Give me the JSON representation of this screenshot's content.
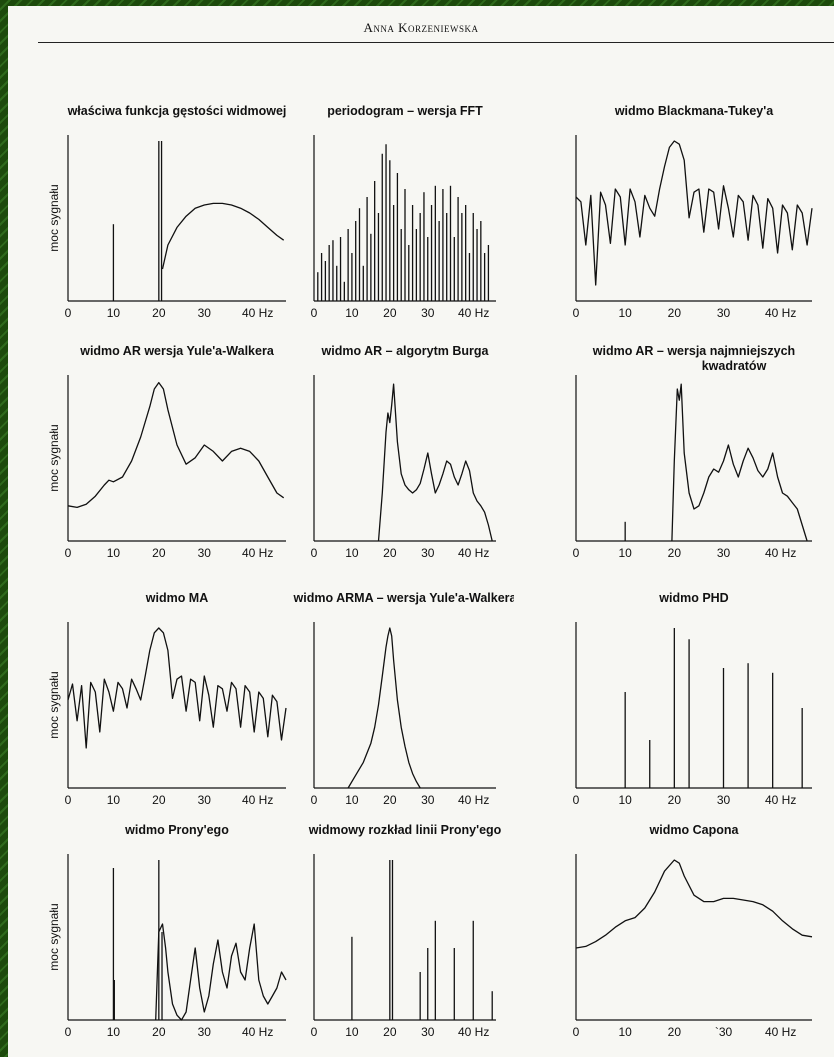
{
  "header": {
    "author": "Anna Korzeniewska"
  },
  "colors": {
    "frame": "#1f4d0e",
    "paper": "#f7f7f3",
    "ink": "#111111"
  },
  "chart_data": [
    {
      "id": "p1",
      "type": "line",
      "title": "właściwa funkcja gęstości widmowej",
      "ylabel": "moc sygnału",
      "x_ticks": [
        "0",
        "10",
        "20",
        "30",
        "40 Hz"
      ],
      "xlim": [
        0,
        48
      ],
      "ylim": [
        0,
        1
      ],
      "lines": [
        {
          "x": 10,
          "h": 0.48
        },
        {
          "x": 20,
          "h": 1.0
        },
        {
          "x": 20.6,
          "h": 1.0
        }
      ],
      "series": [
        {
          "x": [
            20.8,
            22,
            24,
            26,
            28,
            30,
            32,
            34,
            36,
            38,
            40,
            42,
            44,
            46,
            47.5
          ],
          "y": [
            0.2,
            0.35,
            0.46,
            0.53,
            0.58,
            0.6,
            0.61,
            0.61,
            0.6,
            0.58,
            0.55,
            0.51,
            0.46,
            0.41,
            0.38
          ]
        }
      ]
    },
    {
      "id": "p2",
      "type": "bar",
      "title": "periodogram – wersja FFT",
      "ylabel": "",
      "x_ticks": [
        "0",
        "10",
        "20",
        "30",
        "40 Hz"
      ],
      "xlim": [
        0,
        48
      ],
      "ylim": [
        0,
        1
      ],
      "lines": [
        {
          "x": 1,
          "h": 0.18
        },
        {
          "x": 2,
          "h": 0.3
        },
        {
          "x": 3,
          "h": 0.25
        },
        {
          "x": 4,
          "h": 0.35
        },
        {
          "x": 5,
          "h": 0.38
        },
        {
          "x": 6,
          "h": 0.22
        },
        {
          "x": 7,
          "h": 0.4
        },
        {
          "x": 8,
          "h": 0.12
        },
        {
          "x": 9,
          "h": 0.45
        },
        {
          "x": 10,
          "h": 0.3
        },
        {
          "x": 11,
          "h": 0.5
        },
        {
          "x": 12,
          "h": 0.58
        },
        {
          "x": 13,
          "h": 0.22
        },
        {
          "x": 14,
          "h": 0.65
        },
        {
          "x": 15,
          "h": 0.42
        },
        {
          "x": 16,
          "h": 0.75
        },
        {
          "x": 17,
          "h": 0.55
        },
        {
          "x": 18,
          "h": 0.92
        },
        {
          "x": 19,
          "h": 0.98
        },
        {
          "x": 20,
          "h": 0.88
        },
        {
          "x": 21,
          "h": 0.6
        },
        {
          "x": 22,
          "h": 0.8
        },
        {
          "x": 23,
          "h": 0.45
        },
        {
          "x": 24,
          "h": 0.7
        },
        {
          "x": 25,
          "h": 0.35
        },
        {
          "x": 26,
          "h": 0.6
        },
        {
          "x": 27,
          "h": 0.45
        },
        {
          "x": 28,
          "h": 0.55
        },
        {
          "x": 29,
          "h": 0.68
        },
        {
          "x": 30,
          "h": 0.4
        },
        {
          "x": 31,
          "h": 0.6
        },
        {
          "x": 32,
          "h": 0.72
        },
        {
          "x": 33,
          "h": 0.5
        },
        {
          "x": 34,
          "h": 0.7
        },
        {
          "x": 35,
          "h": 0.55
        },
        {
          "x": 36,
          "h": 0.72
        },
        {
          "x": 37,
          "h": 0.4
        },
        {
          "x": 38,
          "h": 0.65
        },
        {
          "x": 39,
          "h": 0.55
        },
        {
          "x": 40,
          "h": 0.6
        },
        {
          "x": 41,
          "h": 0.3
        },
        {
          "x": 42,
          "h": 0.55
        },
        {
          "x": 43,
          "h": 0.45
        },
        {
          "x": 44,
          "h": 0.5
        },
        {
          "x": 45,
          "h": 0.3
        },
        {
          "x": 46,
          "h": 0.35
        }
      ]
    },
    {
      "id": "p3",
      "type": "line",
      "title": "widmo Blackmana-Tukey'a",
      "ylabel": "",
      "x_ticks": [
        "0",
        "10",
        "20",
        "30",
        "40 Hz"
      ],
      "xlim": [
        0,
        48
      ],
      "ylim": [
        0,
        1
      ],
      "series": [
        {
          "x": [
            0,
            1,
            2,
            3,
            4,
            5,
            6,
            7,
            8,
            9,
            10,
            11,
            12,
            13,
            14,
            15,
            16,
            17,
            18,
            19,
            20,
            21,
            22,
            23,
            24,
            25,
            26,
            27,
            28,
            29,
            30,
            31,
            32,
            33,
            34,
            35,
            36,
            37,
            38,
            39,
            40,
            41,
            42,
            43,
            44,
            45,
            46,
            47,
            48
          ],
          "y": [
            0.65,
            0.62,
            0.35,
            0.66,
            0.1,
            0.68,
            0.6,
            0.36,
            0.7,
            0.65,
            0.35,
            0.7,
            0.62,
            0.4,
            0.66,
            0.58,
            0.53,
            0.7,
            0.84,
            0.96,
            1.0,
            0.98,
            0.88,
            0.52,
            0.68,
            0.7,
            0.43,
            0.7,
            0.68,
            0.45,
            0.72,
            0.58,
            0.4,
            0.66,
            0.62,
            0.38,
            0.66,
            0.6,
            0.33,
            0.64,
            0.58,
            0.3,
            0.6,
            0.55,
            0.32,
            0.6,
            0.55,
            0.35,
            0.58
          ]
        }
      ]
    },
    {
      "id": "p4",
      "type": "line",
      "title": "widmo AR wersja Yule'a-Walkera",
      "ylabel": "moc sygnału",
      "x_ticks": [
        "0",
        "10",
        "20",
        "30",
        "40 Hz"
      ],
      "xlim": [
        0,
        48
      ],
      "ylim": [
        0,
        1
      ],
      "series": [
        {
          "x": [
            0,
            2,
            4,
            6,
            8,
            9,
            10,
            12,
            14,
            16,
            18,
            19,
            20,
            21,
            22,
            24,
            26,
            28,
            30,
            32,
            34,
            36,
            38,
            40,
            42,
            44,
            46,
            47.5
          ],
          "y": [
            0.22,
            0.21,
            0.23,
            0.28,
            0.35,
            0.38,
            0.37,
            0.4,
            0.5,
            0.65,
            0.84,
            0.95,
            0.99,
            0.95,
            0.82,
            0.6,
            0.48,
            0.52,
            0.6,
            0.56,
            0.5,
            0.56,
            0.58,
            0.56,
            0.5,
            0.4,
            0.3,
            0.27
          ]
        }
      ]
    },
    {
      "id": "p5",
      "type": "line",
      "title": "widmo AR – algorytm Burga",
      "ylabel": "",
      "x_ticks": [
        "0",
        "10",
        "20",
        "30",
        "40 Hz"
      ],
      "xlim": [
        0,
        48
      ],
      "ylim": [
        0,
        1
      ],
      "series": [
        {
          "x": [
            17,
            18,
            19,
            19.5,
            20,
            20.5,
            21,
            22,
            23,
            24,
            25,
            26,
            27,
            28,
            29,
            30,
            31,
            32,
            33,
            34,
            35,
            36,
            37,
            38,
            39,
            40,
            41,
            42,
            43,
            44,
            45,
            46,
            47
          ],
          "y": [
            0.0,
            0.3,
            0.68,
            0.8,
            0.74,
            0.85,
            0.98,
            0.62,
            0.42,
            0.35,
            0.32,
            0.3,
            0.32,
            0.36,
            0.45,
            0.55,
            0.42,
            0.3,
            0.35,
            0.42,
            0.5,
            0.48,
            0.4,
            0.35,
            0.42,
            0.5,
            0.44,
            0.3,
            0.25,
            0.22,
            0.18,
            0.1,
            0.0
          ]
        }
      ]
    },
    {
      "id": "p6",
      "type": "line",
      "title": "widmo AR – wersja najmniejszych",
      "title2": "kwadratów",
      "ylabel": "",
      "x_ticks": [
        "0",
        "10",
        "20",
        "30",
        "40 Hz"
      ],
      "xlim": [
        0,
        48
      ],
      "ylim": [
        0,
        1
      ],
      "lines": [
        {
          "x": 10,
          "h": 0.12
        }
      ],
      "series": [
        {
          "x": [
            19.5,
            20,
            20.6,
            21,
            21.4,
            22,
            23,
            24,
            25,
            26,
            27,
            28,
            29,
            30,
            31,
            32,
            33,
            34,
            35,
            36,
            37,
            38,
            39,
            40,
            41,
            42,
            43,
            44,
            45,
            46,
            47
          ],
          "y": [
            0.0,
            0.5,
            0.95,
            0.88,
            0.98,
            0.55,
            0.3,
            0.2,
            0.22,
            0.3,
            0.4,
            0.45,
            0.43,
            0.5,
            0.6,
            0.48,
            0.4,
            0.5,
            0.58,
            0.52,
            0.44,
            0.4,
            0.45,
            0.55,
            0.4,
            0.3,
            0.28,
            0.24,
            0.2,
            0.1,
            0.0
          ]
        }
      ]
    },
    {
      "id": "p7",
      "type": "line",
      "title": "widmo MA",
      "ylabel": "moc sygnału",
      "x_ticks": [
        "0",
        "10",
        "20",
        "30",
        "40 Hz"
      ],
      "xlim": [
        0,
        48
      ],
      "ylim": [
        0,
        1
      ],
      "series": [
        {
          "x": [
            0,
            1,
            2,
            3,
            4,
            5,
            6,
            7,
            8,
            9,
            10,
            11,
            12,
            13,
            14,
            15,
            16,
            17,
            18,
            19,
            20,
            21,
            22,
            23,
            24,
            25,
            26,
            27,
            28,
            29,
            30,
            31,
            32,
            33,
            34,
            35,
            36,
            37,
            38,
            39,
            40,
            41,
            42,
            43,
            44,
            45,
            46,
            47,
            48
          ],
          "y": [
            0.55,
            0.65,
            0.42,
            0.64,
            0.25,
            0.66,
            0.6,
            0.35,
            0.68,
            0.6,
            0.48,
            0.66,
            0.62,
            0.5,
            0.68,
            0.62,
            0.55,
            0.7,
            0.86,
            0.97,
            1.0,
            0.97,
            0.86,
            0.56,
            0.68,
            0.7,
            0.48,
            0.68,
            0.66,
            0.42,
            0.7,
            0.58,
            0.38,
            0.64,
            0.62,
            0.48,
            0.66,
            0.62,
            0.38,
            0.64,
            0.6,
            0.35,
            0.6,
            0.56,
            0.32,
            0.58,
            0.54,
            0.3,
            0.5
          ]
        }
      ]
    },
    {
      "id": "p8",
      "type": "line",
      "title": "widmo ARMA – wersja Yule'a-Walkera",
      "ylabel": "",
      "x_ticks": [
        "0",
        "10",
        "20",
        "30",
        "40 Hz"
      ],
      "xlim": [
        0,
        48
      ],
      "ylim": [
        0,
        1
      ],
      "series": [
        {
          "x": [
            9,
            11,
            13,
            15,
            16,
            17,
            18,
            19,
            19.5,
            20,
            20.5,
            21,
            22,
            23,
            24,
            25,
            26,
            27,
            28
          ],
          "y": [
            0.0,
            0.08,
            0.16,
            0.28,
            0.38,
            0.52,
            0.7,
            0.88,
            0.95,
            1.0,
            0.95,
            0.8,
            0.55,
            0.38,
            0.26,
            0.16,
            0.09,
            0.04,
            0.0
          ]
        }
      ]
    },
    {
      "id": "p9",
      "type": "bar",
      "title": "widmo PHD",
      "ylabel": "",
      "x_ticks": [
        "0",
        "10",
        "20",
        "30",
        "40 Hz"
      ],
      "xlim": [
        0,
        48
      ],
      "ylim": [
        0,
        1
      ],
      "lines": [
        {
          "x": 10,
          "h": 0.6
        },
        {
          "x": 15,
          "h": 0.3
        },
        {
          "x": 20,
          "h": 1.0
        },
        {
          "x": 23,
          "h": 0.93
        },
        {
          "x": 30,
          "h": 0.75
        },
        {
          "x": 35,
          "h": 0.78
        },
        {
          "x": 40,
          "h": 0.72
        },
        {
          "x": 46,
          "h": 0.5
        }
      ]
    },
    {
      "id": "p10",
      "type": "line",
      "title": "widmo Prony'ego",
      "ylabel": "moc sygnału",
      "x_ticks": [
        "0",
        "10",
        "20",
        "30",
        "40 Hz"
      ],
      "xlim": [
        0,
        48
      ],
      "ylim": [
        0,
        1
      ],
      "lines": [
        {
          "x": 10,
          "h": 0.95
        },
        {
          "x": 20,
          "h": 1.0
        },
        {
          "x": 20.7,
          "h": 0.55
        },
        {
          "x": 10.2,
          "h": 0.25
        }
      ],
      "series": [
        {
          "x": [
            19.3,
            20,
            20.8,
            21.5,
            22,
            23,
            24,
            25,
            26,
            27,
            28,
            29,
            30,
            31,
            32,
            33,
            34,
            35,
            36,
            37,
            38,
            39,
            40,
            41,
            42,
            43,
            44,
            45,
            46,
            47,
            48
          ],
          "y": [
            0.0,
            0.55,
            0.6,
            0.45,
            0.3,
            0.1,
            0.03,
            0.0,
            0.05,
            0.25,
            0.45,
            0.2,
            0.05,
            0.15,
            0.35,
            0.5,
            0.3,
            0.2,
            0.4,
            0.48,
            0.3,
            0.25,
            0.45,
            0.6,
            0.25,
            0.15,
            0.1,
            0.15,
            0.2,
            0.3,
            0.25
          ]
        }
      ]
    },
    {
      "id": "p11",
      "type": "bar",
      "title": "widmowy rozkład linii Prony'ego",
      "ylabel": "",
      "x_ticks": [
        "0",
        "10",
        "20",
        "30",
        "40 Hz"
      ],
      "xlim": [
        0,
        48
      ],
      "ylim": [
        0,
        1
      ],
      "lines": [
        {
          "x": 10,
          "h": 0.52
        },
        {
          "x": 20,
          "h": 1.0
        },
        {
          "x": 20.7,
          "h": 1.0
        },
        {
          "x": 28,
          "h": 0.3
        },
        {
          "x": 30,
          "h": 0.45
        },
        {
          "x": 32,
          "h": 0.62
        },
        {
          "x": 37,
          "h": 0.45
        },
        {
          "x": 42,
          "h": 0.62
        },
        {
          "x": 47,
          "h": 0.18
        }
      ]
    },
    {
      "id": "p12",
      "type": "line",
      "title": "widmo Capona",
      "ylabel": "",
      "x_ticks": [
        "0",
        "10",
        "20",
        "`30",
        "40 Hz"
      ],
      "xlim": [
        0,
        48
      ],
      "ylim": [
        0,
        1
      ],
      "series": [
        {
          "x": [
            0,
            2,
            4,
            6,
            8,
            10,
            12,
            14,
            16,
            18,
            20,
            21,
            22,
            24,
            26,
            28,
            30,
            32,
            34,
            36,
            38,
            40,
            42,
            44,
            46,
            48
          ],
          "y": [
            0.45,
            0.46,
            0.49,
            0.53,
            0.58,
            0.62,
            0.64,
            0.7,
            0.8,
            0.93,
            1.0,
            0.98,
            0.9,
            0.78,
            0.74,
            0.74,
            0.76,
            0.76,
            0.75,
            0.74,
            0.72,
            0.68,
            0.62,
            0.57,
            0.53,
            0.52
          ]
        }
      ]
    }
  ]
}
